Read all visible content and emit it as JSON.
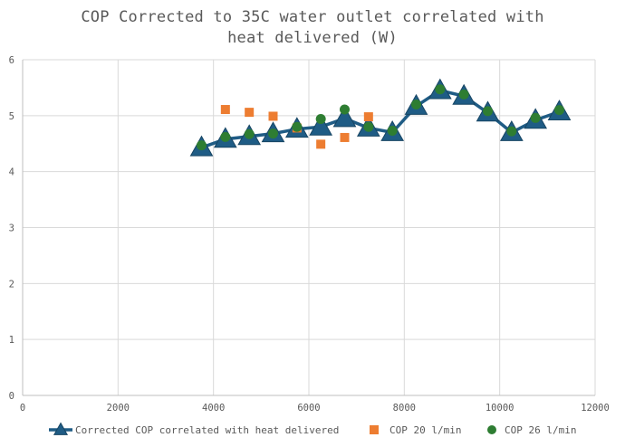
{
  "chart_data": {
    "type": "scatter",
    "title_lines": [
      "COP Corrected to 35C water outlet correlated with",
      "heat delivered (W)"
    ],
    "xlabel": "",
    "ylabel": "",
    "xlim": [
      0,
      12000
    ],
    "ylim": [
      0,
      6
    ],
    "x_ticks": [
      "0",
      "2000",
      "4000",
      "6000",
      "8000",
      "10000",
      "12000"
    ],
    "y_ticks": [
      "0",
      "1",
      "2",
      "3",
      "4",
      "5",
      "6"
    ],
    "grid": true,
    "legend_position": "bottom",
    "series": [
      {
        "name": "Corrected COP correlated with heat delivered",
        "style": "line-triangle",
        "color": "#1F5C85",
        "points": [
          [
            3750,
            4.43
          ],
          [
            4250,
            4.58
          ],
          [
            4750,
            4.63
          ],
          [
            5250,
            4.68
          ],
          [
            5750,
            4.76
          ],
          [
            6250,
            4.8
          ],
          [
            6750,
            4.95
          ],
          [
            7250,
            4.78
          ],
          [
            7750,
            4.7
          ],
          [
            8250,
            5.17
          ],
          [
            8750,
            5.45
          ],
          [
            9250,
            5.35
          ],
          [
            9750,
            5.05
          ],
          [
            10250,
            4.7
          ],
          [
            10750,
            4.92
          ],
          [
            11250,
            5.07
          ]
        ]
      },
      {
        "name": "COP 20 l/min",
        "style": "square",
        "color": "#ED7D31",
        "points": [
          [
            4250,
            5.11
          ],
          [
            4750,
            5.06
          ],
          [
            5250,
            4.99
          ],
          [
            5750,
            4.78
          ],
          [
            6250,
            4.49
          ],
          [
            6750,
            4.61
          ],
          [
            7250,
            4.98
          ]
        ]
      },
      {
        "name": "COP 26 l/min",
        "style": "circle",
        "color": "#2E7D32",
        "points": [
          [
            3750,
            4.47
          ],
          [
            4250,
            4.62
          ],
          [
            4750,
            4.67
          ],
          [
            5250,
            4.68
          ],
          [
            5750,
            4.8
          ],
          [
            6250,
            4.94
          ],
          [
            6750,
            5.11
          ],
          [
            7250,
            4.8
          ],
          [
            7750,
            4.73
          ],
          [
            8250,
            5.2
          ],
          [
            8750,
            5.47
          ],
          [
            9250,
            5.38
          ],
          [
            9750,
            5.08
          ],
          [
            10250,
            4.72
          ],
          [
            10750,
            4.96
          ],
          [
            11250,
            5.1
          ]
        ]
      }
    ]
  }
}
